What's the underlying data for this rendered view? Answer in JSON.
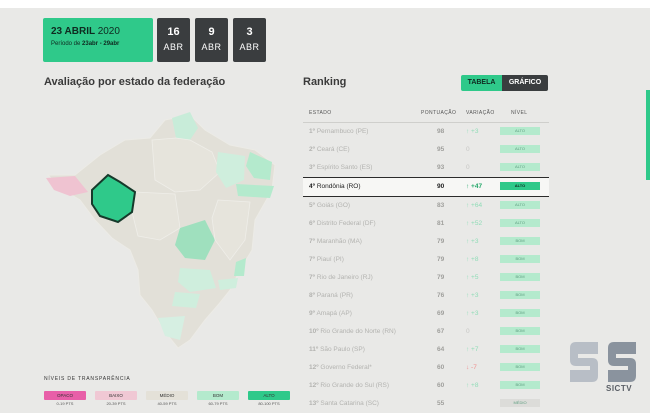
{
  "header": {
    "date_main": "23 ABRIL",
    "date_year": "2020",
    "period_prefix": "Período de",
    "period_range": "23abr - 29abr",
    "tiles": [
      {
        "num": "16",
        "month": "ABR"
      },
      {
        "num": "9",
        "month": "ABR"
      },
      {
        "num": "3",
        "month": "ABR"
      }
    ]
  },
  "map_section": {
    "title": "Avaliação por estado da federação"
  },
  "legend": {
    "title": "NÍVEIS DE TRANSPARÊNCIA",
    "items": [
      {
        "label": "OPACO",
        "range": "0-19 PTS",
        "color": "#e85fa8"
      },
      {
        "label": "BAIXO",
        "range": "20-39 PTS",
        "color": "#f0c8d4"
      },
      {
        "label": "MÉDIO",
        "range": "40-59 PTS",
        "color": "#e8e4da"
      },
      {
        "label": "BOM",
        "range": "60-79 PTS",
        "color": "#b4eacd"
      },
      {
        "label": "ALTO",
        "range": "80-100 PTS",
        "color": "#2fc98a"
      }
    ]
  },
  "ranking": {
    "title": "Ranking",
    "toggle": {
      "table": "TABELA",
      "chart": "GRÁFICO"
    },
    "columns": {
      "state": "ESTADO",
      "points": "PONTUAÇÃO",
      "variation": "VARIAÇÃO",
      "level": "NÍVEL"
    },
    "rows": [
      {
        "pos": "1º",
        "name": "Pernambuco (PE)",
        "pts": "98",
        "var": "↑ +3",
        "lvl": "ALTO"
      },
      {
        "pos": "2º",
        "name": "Ceará (CE)",
        "pts": "95",
        "var": "0",
        "lvl": "ALTO"
      },
      {
        "pos": "3º",
        "name": "Espírito Santo (ES)",
        "pts": "93",
        "var": "0",
        "lvl": "ALTO"
      },
      {
        "pos": "4º",
        "name": "Rondônia (RO)",
        "pts": "90",
        "var": "↑ +47",
        "lvl": "ALTO"
      },
      {
        "pos": "5º",
        "name": "Goiás (GO)",
        "pts": "83",
        "var": "↑ +64",
        "lvl": "ALTO"
      },
      {
        "pos": "6º",
        "name": "Distrito Federal (DF)",
        "pts": "81",
        "var": "↑ +52",
        "lvl": "ALTO"
      },
      {
        "pos": "7º",
        "name": "Maranhão (MA)",
        "pts": "79",
        "var": "↑ +3",
        "lvl": "BOM"
      },
      {
        "pos": "7º",
        "name": "Piauí (PI)",
        "pts": "79",
        "var": "↑ +8",
        "lvl": "BOM"
      },
      {
        "pos": "7º",
        "name": "Rio de Janeiro (RJ)",
        "pts": "79",
        "var": "↑ +5",
        "lvl": "BOM"
      },
      {
        "pos": "8º",
        "name": "Paraná (PR)",
        "pts": "76",
        "var": "↑ +3",
        "lvl": "BOM"
      },
      {
        "pos": "9º",
        "name": "Amapá (AP)",
        "pts": "69",
        "var": "↑ +3",
        "lvl": "BOM"
      },
      {
        "pos": "10º",
        "name": "Rio Grande do Norte (RN)",
        "pts": "67",
        "var": "0",
        "lvl": "BOM"
      },
      {
        "pos": "11º",
        "name": "São Paulo (SP)",
        "pts": "64",
        "var": "↑ +7",
        "lvl": "BOM"
      },
      {
        "pos": "12º",
        "name": "Governo Federal*",
        "pts": "60",
        "var": "↓ -7",
        "lvl": "BOM"
      },
      {
        "pos": "12º",
        "name": "Rio Grande do Sul (RS)",
        "pts": "60",
        "var": "↑ +8",
        "lvl": "BOM"
      },
      {
        "pos": "13º",
        "name": "Santa Catarina (SC)",
        "pts": "55",
        "var": "",
        "lvl": "MÉDIO"
      }
    ]
  },
  "brand": {
    "logo_text": "SICTV"
  }
}
